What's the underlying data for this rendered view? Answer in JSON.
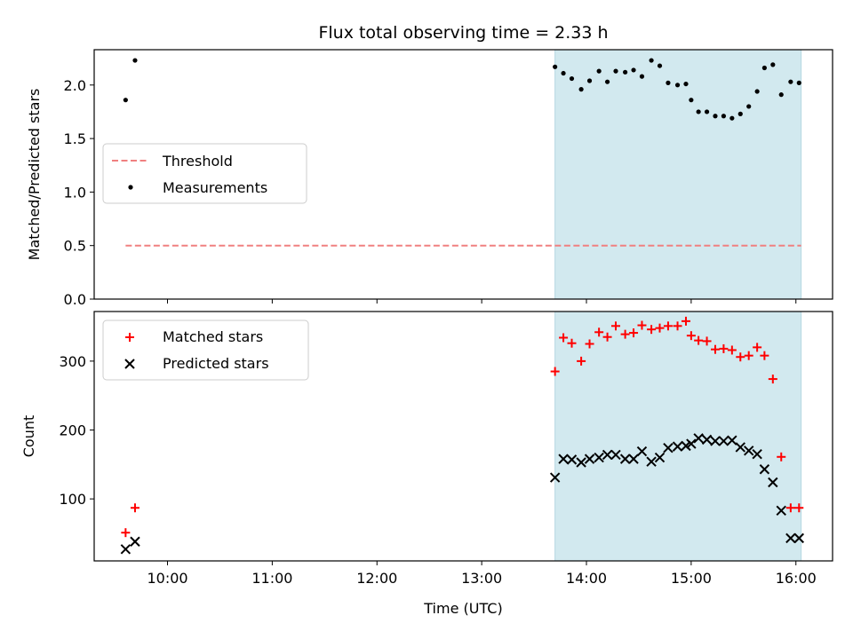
{
  "chart_data": [
    {
      "type": "scatter",
      "title": "Flux total observing time = 2.33 h",
      "ylabel": "Matched/Predicted stars",
      "xlim_hours": [
        9.3,
        16.35
      ],
      "ylim": [
        0,
        2.33
      ],
      "y_ticks": [
        0.0,
        0.5,
        1.0,
        1.5,
        2.0
      ],
      "y_tick_labels": [
        "0.0",
        "0.5",
        "1.0",
        "1.5",
        "2.0"
      ],
      "legend_position": "center-left",
      "shaded_span_hours": [
        13.7,
        16.05
      ],
      "shade_color": "#d2e9ef",
      "threshold": {
        "name": "Threshold",
        "value": 0.5,
        "x_start": 9.6,
        "x_end": 16.05,
        "color": "#f08080",
        "style": "dashed"
      },
      "series": [
        {
          "name": "Measurements",
          "marker": "dot",
          "color": "#000000",
          "x": [
            9.6,
            9.69,
            13.7,
            13.78,
            13.86,
            13.95,
            14.03,
            14.12,
            14.2,
            14.28,
            14.37,
            14.45,
            14.53,
            14.62,
            14.7,
            14.78,
            14.87,
            14.95,
            15.0,
            15.07,
            15.15,
            15.23,
            15.31,
            15.39,
            15.47,
            15.55,
            15.63,
            15.7,
            15.78,
            15.86,
            15.95,
            16.03
          ],
          "y": [
            1.86,
            2.23,
            2.17,
            2.11,
            2.06,
            1.96,
            2.04,
            2.13,
            2.03,
            2.13,
            2.12,
            2.14,
            2.08,
            2.23,
            2.18,
            2.02,
            2.0,
            2.01,
            1.86,
            1.75,
            1.75,
            1.71,
            1.71,
            1.69,
            1.73,
            1.8,
            1.94,
            2.16,
            2.19,
            1.91,
            2.03,
            2.02
          ]
        }
      ]
    },
    {
      "type": "scatter",
      "xlabel": "Time (UTC)",
      "ylabel": "Count",
      "xlim_hours": [
        9.3,
        16.35
      ],
      "ylim": [
        10,
        372
      ],
      "x_ticks_hours": [
        10,
        11,
        12,
        13,
        14,
        15,
        16
      ],
      "x_tick_labels": [
        "10:00",
        "11:00",
        "12:00",
        "13:00",
        "14:00",
        "15:00",
        "16:00"
      ],
      "y_ticks": [
        100,
        200,
        300
      ],
      "y_tick_labels": [
        "100",
        "200",
        "300"
      ],
      "legend_position": "top-left",
      "shaded_span_hours": [
        13.7,
        16.05
      ],
      "shade_color": "#d2e9ef",
      "series": [
        {
          "name": "Matched stars",
          "marker": "plus",
          "color": "#ff0000",
          "x": [
            9.6,
            9.69,
            13.7,
            13.78,
            13.86,
            13.95,
            14.03,
            14.12,
            14.2,
            14.28,
            14.37,
            14.45,
            14.53,
            14.62,
            14.7,
            14.78,
            14.87,
            14.95,
            15.0,
            15.07,
            15.15,
            15.23,
            15.31,
            15.39,
            15.47,
            15.55,
            15.63,
            15.7,
            15.78,
            15.86,
            15.95,
            16.03
          ],
          "y": [
            51,
            87,
            285,
            334,
            326,
            300,
            325,
            342,
            335,
            351,
            339,
            341,
            352,
            346,
            348,
            351,
            351,
            358,
            337,
            330,
            329,
            317,
            318,
            316,
            306,
            308,
            320,
            308,
            274,
            161,
            87,
            87
          ]
        },
        {
          "name": "Predicted stars",
          "marker": "x",
          "color": "#000000",
          "x": [
            9.6,
            9.69,
            13.7,
            13.78,
            13.86,
            13.95,
            14.03,
            14.12,
            14.2,
            14.28,
            14.37,
            14.45,
            14.53,
            14.62,
            14.7,
            14.78,
            14.87,
            14.95,
            15.0,
            15.07,
            15.15,
            15.23,
            15.31,
            15.39,
            15.47,
            15.55,
            15.63,
            15.7,
            15.78,
            15.86,
            15.95,
            16.03
          ],
          "y": [
            27,
            38,
            131,
            158,
            157,
            153,
            158,
            160,
            164,
            164,
            158,
            158,
            169,
            154,
            160,
            174,
            176,
            177,
            180,
            188,
            186,
            184,
            184,
            185,
            175,
            170,
            165,
            143,
            124,
            83,
            43,
            43
          ]
        }
      ]
    }
  ]
}
